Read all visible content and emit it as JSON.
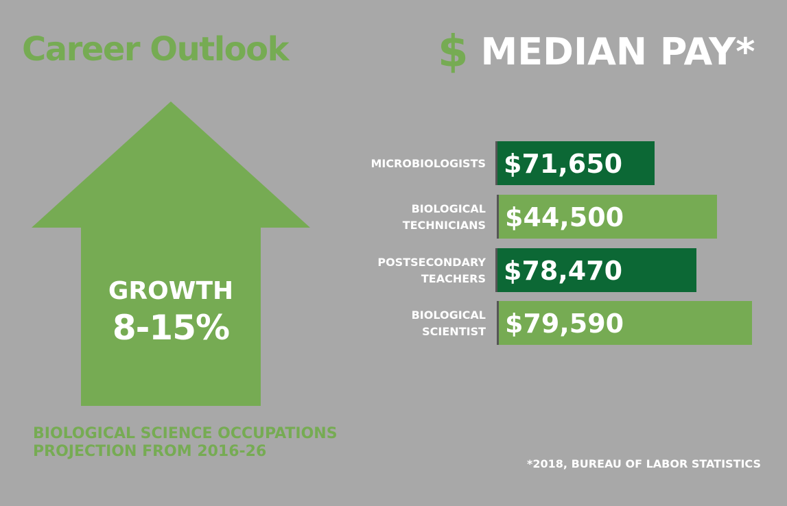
{
  "left": {
    "title": "Career Outlook",
    "growth_label": "GROWTH",
    "growth_value": "8-15%",
    "projection_line1": "BIOLOGICAL SCIENCE OCCUPATIONS",
    "projection_line2": "PROJECTION FROM 2016-26"
  },
  "right": {
    "icon": "dollar-icon",
    "icon_glyph": "$",
    "title": "MEDIAN PAY*",
    "footnote": "*2018, BUREAU OF LABOR STATISTICS"
  },
  "colors": {
    "background": "#a8a8a8",
    "light_green": "#76ab53",
    "dark_green": "#0c6835",
    "text": "#ffffff"
  },
  "chart_data": {
    "type": "bar",
    "orientation": "horizontal",
    "categories": [
      [
        "MICROBIOLOGISTS"
      ],
      [
        "BIOLOGICAL",
        "TECHNICIANS"
      ],
      [
        "POSTSECONDARY",
        "TEACHERS"
      ],
      [
        "BIOLOGICAL",
        "SCIENTIST"
      ]
    ],
    "values": [
      71650,
      44500,
      78470,
      79590
    ],
    "value_labels": [
      "$71,650",
      "$44,500",
      "$78,470",
      "$79,590"
    ],
    "bar_colors": [
      "#0c6835",
      "#76ab53",
      "#0c6835",
      "#76ab53"
    ]
  }
}
